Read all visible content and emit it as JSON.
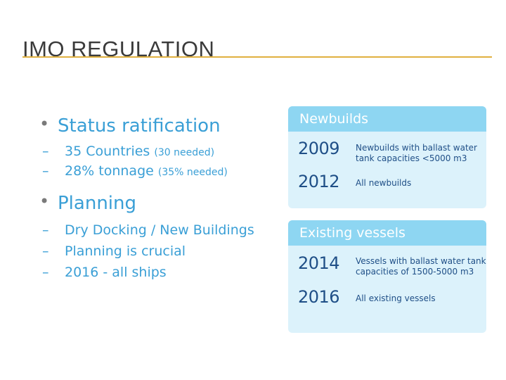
{
  "title": "IMO REGULATION",
  "bullets": [
    {
      "label": "Status ratification",
      "subs": [
        {
          "text": "35 Countries",
          "note": "(30 needed)"
        },
        {
          "text": "28% tonnage",
          "note": "(35% needed)"
        }
      ]
    },
    {
      "label": "Planning",
      "subs": [
        {
          "text": "Dry Docking / New Buildings",
          "note": ""
        },
        {
          "text": "Planning is crucial",
          "note": ""
        },
        {
          "text": "2016 - all ships",
          "note": ""
        }
      ]
    }
  ],
  "newbuilds": {
    "heading": "Newbuilds",
    "rows": [
      {
        "year": "2009",
        "desc": "Newbuilds with ballast water tank capacities <5000 m3"
      },
      {
        "year": "2012",
        "desc": "All newbuilds"
      }
    ]
  },
  "existing": {
    "heading": "Existing vessels",
    "rows": [
      {
        "year": "2014",
        "desc": "Vessels with ballast water tank capacities of 1500-5000 m3"
      },
      {
        "year": "2016",
        "desc": "All existing vessels"
      }
    ]
  }
}
